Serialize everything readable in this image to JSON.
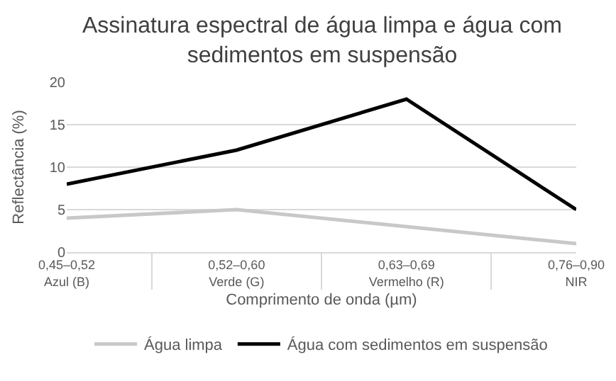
{
  "chart_data": {
    "type": "line",
    "title": "Assinatura espectral de água limpa e água com sedimentos em suspensão",
    "xlabel": "Comprimento de onda (µm)",
    "ylabel": "Reflectância (%)",
    "categories": [
      "0,45–0,52\nAzul (B)",
      "0,52–0,60\nVerde (G)",
      "0,63–0,69\nVermelho (R)",
      "0,76–0,90\nNIR"
    ],
    "series": [
      {
        "name": "Água limpa",
        "color": "#c8c8c8",
        "values": [
          4,
          5,
          3,
          1
        ]
      },
      {
        "name": "Água com sedimentos em suspensão",
        "color": "#000000",
        "values": [
          8,
          12,
          18,
          5
        ]
      }
    ],
    "ylim": [
      0,
      20
    ],
    "yticks": [
      0,
      5,
      10,
      15,
      20
    ],
    "grid": "y",
    "legend": "bottom",
    "marker": "none",
    "line_style": "solid"
  }
}
